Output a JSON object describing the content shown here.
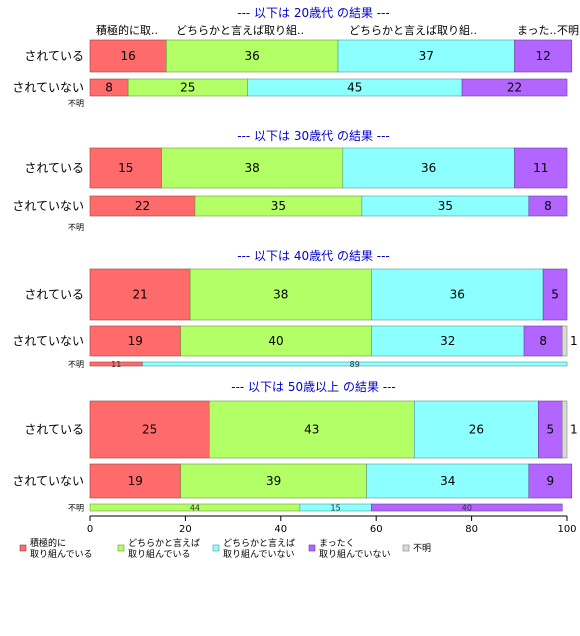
{
  "chart_data": {
    "type": "bar",
    "orientation": "horizontal-stacked-percent",
    "xlim": [
      0,
      100
    ],
    "x_ticks": [
      "0",
      "20",
      "40",
      "60",
      "80",
      "100"
    ],
    "column_headers": [
      "積極的に取..",
      "どちらかと言えば取り組..",
      "どちらかと言えば取り組..",
      "まった..",
      "不明"
    ],
    "categories": [
      "積極的に\n取り組んでいる",
      "どちらかと言えば\n取り組んでいる",
      "どちらかと言えば\n取り組んでいない",
      "まったく\n取り組んでいない",
      "不明"
    ],
    "colors": [
      "#ff6b6b",
      "#b3ff66",
      "#8cffff",
      "#b266ff",
      "#d9d9d9"
    ],
    "panels": [
      {
        "title": "--- 以下は 20歳代 の結果 ---",
        "rows": [
          {
            "label": "されている",
            "values": [
              16,
              36,
              37,
              12,
              0
            ]
          },
          {
            "label": "されていない",
            "values": [
              8,
              25,
              45,
              22,
              0
            ]
          },
          {
            "label": "不明",
            "values": [
              0,
              0,
              0,
              0,
              0
            ]
          }
        ]
      },
      {
        "title": "--- 以下は 30歳代 の結果 ---",
        "rows": [
          {
            "label": "されている",
            "values": [
              15,
              38,
              36,
              11,
              0
            ]
          },
          {
            "label": "されていない",
            "values": [
              22,
              35,
              35,
              8,
              0
            ]
          },
          {
            "label": "不明",
            "values": [
              0,
              0,
              0,
              0,
              0
            ]
          }
        ]
      },
      {
        "title": "--- 以下は 40歳代 の結果 ---",
        "rows": [
          {
            "label": "されている",
            "values": [
              21,
              38,
              36,
              5,
              0
            ]
          },
          {
            "label": "されていない",
            "values": [
              19,
              40,
              32,
              8,
              1
            ]
          },
          {
            "label": "不明",
            "values": [
              11,
              0,
              89,
              0,
              0
            ]
          }
        ]
      },
      {
        "title": "--- 以下は 50歳以上 の結果 ---",
        "rows": [
          {
            "label": "されている",
            "values": [
              25,
              43,
              26,
              5,
              1
            ]
          },
          {
            "label": "されていない",
            "values": [
              19,
              39,
              34,
              9,
              0
            ]
          },
          {
            "label": "不明",
            "values": [
              0,
              44,
              15,
              40,
              0
            ]
          }
        ]
      }
    ]
  }
}
